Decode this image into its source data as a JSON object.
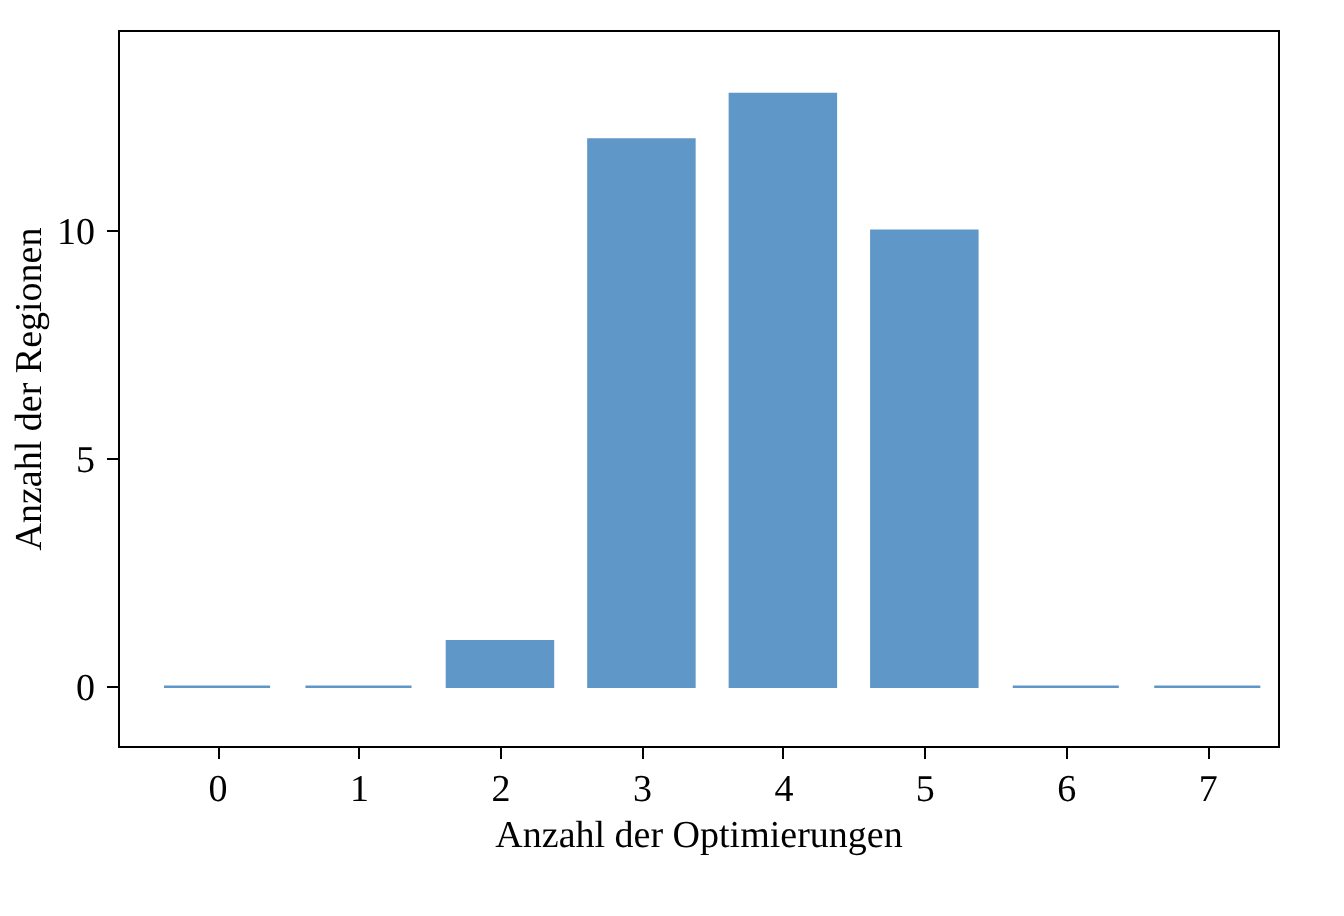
{
  "chart_data": {
    "type": "bar",
    "xlabel": "Anzahl der Optimierungen",
    "ylabel": "Anzahl der Regionen",
    "x": [
      0,
      1,
      2,
      3,
      4,
      5,
      6,
      7
    ],
    "series": [
      {
        "color": "#5f98c8",
        "values": [
          0,
          0,
          1,
          12,
          13,
          10,
          0,
          0
        ]
      }
    ],
    "xlim": [
      -0.7,
      7.5
    ],
    "xticks": [
      0,
      1,
      2,
      3,
      4,
      5,
      6,
      7
    ],
    "ylim": [
      -1.3,
      14.4
    ],
    "yticks": [
      0,
      5,
      10
    ],
    "grid": false
  }
}
